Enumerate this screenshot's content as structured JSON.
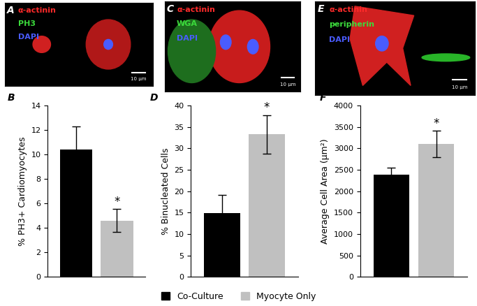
{
  "chart_data": [
    {
      "type": "bar",
      "title": "B",
      "y_label": "% PH3+ Cardiomyocytes",
      "categories": [
        null
      ],
      "series": [
        {
          "name": "Co-Culture",
          "color": "#000000",
          "values": [
            10.4
          ],
          "errors": [
            1.9
          ]
        },
        {
          "name": "Myocyte Only",
          "color": "#c0c0c0",
          "values": [
            4.6
          ],
          "errors": [
            0.95
          ]
        }
      ],
      "ylim": [
        0,
        14
      ],
      "yticks": [
        0,
        2,
        4,
        6,
        8,
        10,
        12,
        14
      ],
      "tick_labels": "y",
      "annotations": [
        {
          "text": "*",
          "series": "Myocyte Only"
        }
      ]
    },
    {
      "type": "bar",
      "title": "D",
      "y_label": "% Binucleated Cells",
      "categories": [
        null
      ],
      "series": [
        {
          "name": "Co-Culture",
          "color": "#000000",
          "values": [
            14.9
          ],
          "errors": [
            4.3
          ]
        },
        {
          "name": "Myocyte Only",
          "color": "#c0c0c0",
          "values": [
            33.3
          ],
          "errors": [
            4.5
          ]
        }
      ],
      "ylim": [
        0,
        40
      ],
      "yticks": [
        0,
        5,
        10,
        15,
        20,
        25,
        30,
        35,
        40
      ],
      "tick_labels": "y",
      "annotations": [
        {
          "text": "*",
          "series": "Myocyte Only"
        }
      ]
    },
    {
      "type": "bar",
      "title": "F",
      "y_label": "Average Cell Area (μm²)",
      "categories": [
        null
      ],
      "series": [
        {
          "name": "Co-Culture",
          "color": "#000000",
          "values": [
            2390
          ],
          "errors": [
            160
          ]
        },
        {
          "name": "Myocyte Only",
          "color": "#c0c0c0",
          "values": [
            3100
          ],
          "errors": [
            310
          ]
        }
      ],
      "ylim": [
        0,
        4000
      ],
      "yticks": [
        0,
        500,
        1000,
        1500,
        2000,
        2500,
        3000,
        3500,
        4000
      ],
      "tick_labels": "y",
      "annotations": [
        {
          "text": "*",
          "series": "Myocyte Only"
        }
      ]
    }
  ],
  "legend": "lower center",
  "images": [
    {
      "panel": "A",
      "stains": [
        {
          "name": "α-actinin",
          "color": "#ff2a2a"
        },
        {
          "name": "PH3",
          "color": "#3cdc3c"
        },
        {
          "name": "DAPI",
          "color": "#4a5cff"
        }
      ],
      "scale_bar": "10 μm"
    },
    {
      "panel": "C",
      "stains": [
        {
          "name": "α-actinin",
          "color": "#ff2a2a"
        },
        {
          "name": "WGA",
          "color": "#3cdc3c"
        },
        {
          "name": "DAPI",
          "color": "#4a5cff"
        }
      ],
      "scale_bar": "10 μm"
    },
    {
      "panel": "E",
      "stains": [
        {
          "name": "α-actinin",
          "color": "#ff2a2a"
        },
        {
          "name": "peripherin",
          "color": "#3cdc3c"
        },
        {
          "name": "DAPI",
          "color": "#4a5cff"
        }
      ],
      "scale_bar": "10 μm"
    }
  ]
}
